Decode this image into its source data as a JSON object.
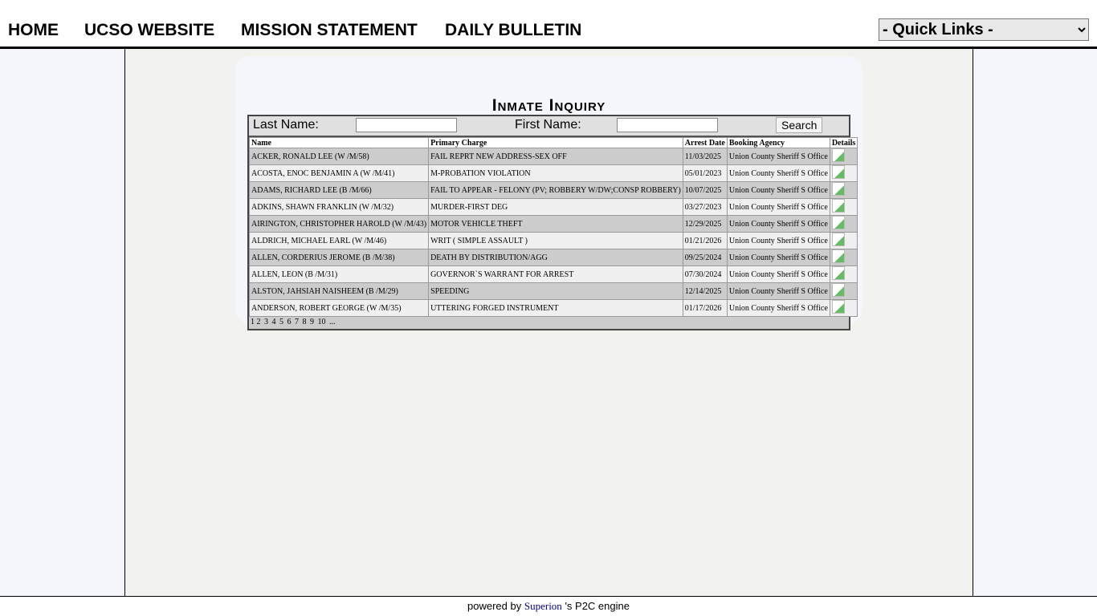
{
  "nav": {
    "items": [
      "HOME",
      "UCSO WEBSITE",
      "MISSION STATEMENT",
      "DAILY BULLETIN"
    ],
    "quick_links": "- Quick Links -"
  },
  "title": "Inmate Inquiry",
  "search": {
    "last_label": "Last Name:",
    "first_label": "First Name:",
    "button": "Search",
    "last_value": "",
    "first_value": ""
  },
  "table": {
    "headers": [
      "Name",
      "Primary Charge",
      "Arrest Date",
      "Booking Agency",
      "Details"
    ],
    "rows": [
      [
        "ACKER, RONALD LEE (W /M/58)",
        "FAIL REPRT NEW ADDRESS-SEX OFF",
        "11/03/2025",
        "Union County Sheriff S Office"
      ],
      [
        "ACOSTA, ENOC BENJAMIN A (W /M/41)",
        "M-PROBATION VIOLATION",
        "05/01/2023",
        "Union County Sheriff S Office"
      ],
      [
        "ADAMS, RICHARD LEE (B /M/66)",
        "FAIL TO APPEAR - FELONY (PV; ROBBERY W/DW;CONSP ROBBERY)",
        "10/07/2025",
        "Union County Sheriff S Office"
      ],
      [
        "ADKINS, SHAWN FRANKLIN (W /M/32)",
        "MURDER-FIRST DEG",
        "03/27/2023",
        "Union County Sheriff S Office"
      ],
      [
        "AIRINGTON, CHRISTOPHER HAROLD (W /M/43)",
        "MOTOR VEHICLE THEFT",
        "12/29/2025",
        "Union County Sheriff S Office"
      ],
      [
        "ALDRICH, MICHAEL EARL (W /M/46)",
        "WRIT ( SIMPLE ASSAULT )",
        "01/21/2026",
        "Union County Sheriff S Office"
      ],
      [
        "ALLEN, CORDERIUS JEROME (B /M/38)",
        "DEATH BY DISTRIBUTION/AGG",
        "09/25/2024",
        "Union County Sheriff S Office"
      ],
      [
        "ALLEN, LEON (B /M/31)",
        "GOVERNOR`S WARRANT FOR ARREST",
        "07/30/2024",
        "Union County Sheriff S Office"
      ],
      [
        "ALSTON, JAHSIAH NAISHEEM (B /M/29)",
        "SPEEDING",
        "12/14/2025",
        "Union County Sheriff S Office"
      ],
      [
        "ANDERSON, ROBERT GEORGE (W /M/35)",
        "UTTERING FORGED INSTRUMENT",
        "01/17/2026",
        "Union County Sheriff S Office"
      ]
    ],
    "pages": [
      "1",
      "2",
      "3",
      "4",
      "5",
      "6",
      "7",
      "8",
      "9",
      "10",
      "..."
    ]
  },
  "footer": {
    "prefix": "powered by",
    "brand": "Superion",
    "suffix": "'s P2C engine"
  }
}
